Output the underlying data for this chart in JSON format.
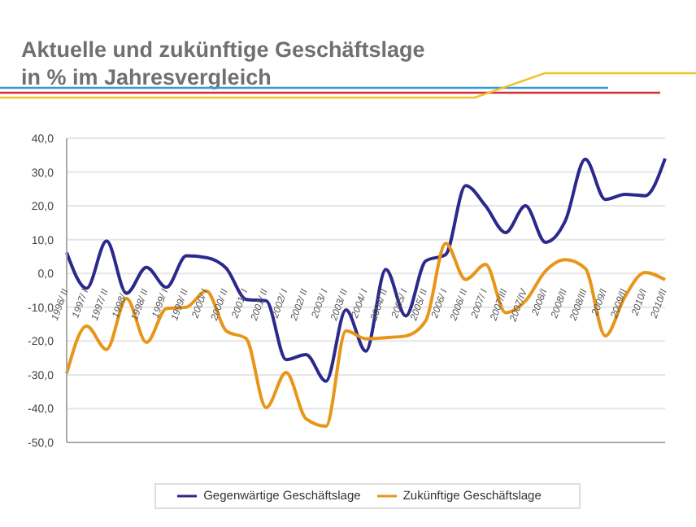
{
  "chart_data": {
    "type": "line",
    "title": "Aktuelle und zukünftige Geschäftslage",
    "subtitle": "in % im Jahresvergleich",
    "categories": [
      "1996/ II",
      "1997/ I",
      "1997/ II",
      "1998/ I",
      "1998/ II",
      "1999/ I",
      "1999/ II",
      "2000/ I",
      "2000/ II",
      "2001/ I",
      "2001/ II",
      "2002/ I",
      "2002/ II",
      "2003/ I",
      "2003/ II",
      "2004/ I",
      "2004/ II",
      "2005/ I",
      "2005/ II",
      "2006/ I",
      "2006/ II",
      "2007/ I",
      "2007/III",
      "2007/IV",
      "2008/I",
      "2008/II",
      "2008/III",
      "2009/I",
      "2009/II",
      "2010/I",
      "2010/II"
    ],
    "series": [
      {
        "name": "Gegenwärtige Geschäftslage",
        "color": "#2b2a8c",
        "values": [
          6.2,
          -4.4,
          9.6,
          -5.9,
          1.8,
          -4.1,
          5.2,
          4.7,
          1.5,
          -7.7,
          -8.1,
          -25.5,
          -24,
          -31.9,
          -10.8,
          -23,
          1.2,
          -12.6,
          3.7,
          5.6,
          26,
          20,
          12.1,
          20,
          9.2,
          15.6,
          33.8,
          21.9,
          23.4,
          23,
          34
        ]
      },
      {
        "name": "Zukünftige Geschäftslage",
        "color": "#e8961a",
        "values": [
          -29.6,
          -15.6,
          -22.5,
          -7.4,
          -20.4,
          -10.4,
          -10,
          -5.2,
          -17,
          -19.3,
          -39.7,
          -29.3,
          -43,
          -45.2,
          -17,
          -19.3,
          -19,
          -18.5,
          -14,
          8.9,
          -1.8,
          2.7,
          -11.6,
          -8.1,
          0.7,
          4.1,
          1.5,
          -18.5,
          -6.7,
          0.3,
          -1.9
        ]
      }
    ],
    "ylim": [
      -50,
      40
    ],
    "yticks": [
      {
        "value": -50,
        "label": "-50,0"
      },
      {
        "value": -40,
        "label": "-40,0"
      },
      {
        "value": -30,
        "label": "-30,0"
      },
      {
        "value": -20,
        "label": "-20,0"
      },
      {
        "value": -10,
        "label": "-10,0"
      },
      {
        "value": 0,
        "label": "0,0"
      },
      {
        "value": 10,
        "label": "10,0"
      },
      {
        "value": 20,
        "label": "20,0"
      },
      {
        "value": 30,
        "label": "30,0"
      },
      {
        "value": 40,
        "label": "40,0"
      }
    ],
    "grid": "y",
    "legend": "bottom",
    "marker": "none",
    "line_style": "solid"
  }
}
